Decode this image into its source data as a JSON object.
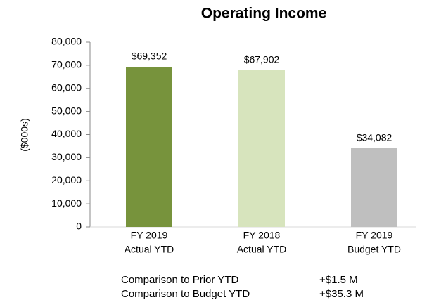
{
  "chart_data": {
    "type": "bar",
    "title": "Operating Income",
    "y_label": "($000s)",
    "categories": [
      [
        "FY 2019",
        "Actual YTD"
      ],
      [
        "FY 2018",
        "Actual YTD"
      ],
      [
        "FY 2019",
        "Budget YTD"
      ]
    ],
    "values": [
      69352,
      67902,
      34082
    ],
    "value_labels": [
      "$69,352",
      "$67,902",
      "$34,082"
    ],
    "colors": [
      "#77933c",
      "#d7e4bd",
      "#bfbfbf"
    ],
    "ylim": [
      0,
      80000
    ],
    "yticks": [
      0,
      {
        "value": 10000,
        "label": "10,000"
      },
      {
        "value": 20000,
        "label": "20,000"
      },
      {
        "value": 30000,
        "label": "30,000"
      },
      {
        "value": 40000,
        "label": "40,000"
      },
      {
        "value": 50000,
        "label": "50,000"
      },
      {
        "value": 60000,
        "label": "60,000"
      },
      {
        "value": 70000,
        "label": "70,000"
      },
      {
        "value": 80000,
        "label": "80,000"
      }
    ],
    "grid": false,
    "annotations": [
      [
        "Comparison to Prior YTD",
        "+$1.5 M"
      ],
      [
        "Comparison to Budget YTD",
        "+$35.3 M"
      ]
    ]
  }
}
